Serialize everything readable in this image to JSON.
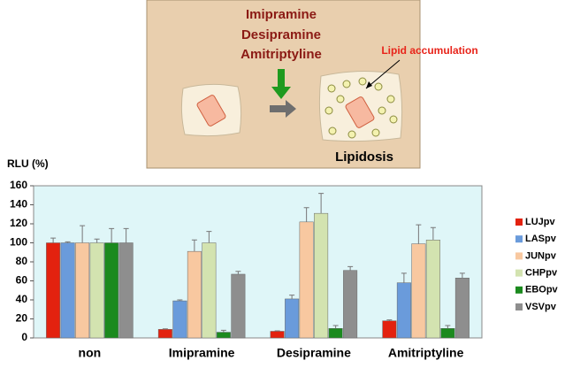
{
  "diagram": {
    "drugs": [
      "Imipramine",
      "Desipramine",
      "Amitriptyline"
    ],
    "annotation": "Lipid accumulation",
    "result": "Lipidosis"
  },
  "chart_data": {
    "type": "bar",
    "ylabel": "RLU (%)",
    "categories": [
      "non",
      "Imipramine",
      "Desipramine",
      "Amitriptyline"
    ],
    "ylim": [
      0,
      160
    ],
    "yticks": [
      0,
      20,
      40,
      60,
      80,
      100,
      120,
      140,
      160
    ],
    "grid": false,
    "legend": "right",
    "series": [
      {
        "name": "LUJpv",
        "color": "#e3220f",
        "values": [
          100,
          9,
          7,
          18
        ],
        "errors": [
          5,
          0.5,
          0.5,
          1
        ]
      },
      {
        "name": "LASpv",
        "color": "#6a9bdb",
        "values": [
          100,
          39,
          41,
          58
        ],
        "errors": [
          1,
          1,
          4,
          10
        ]
      },
      {
        "name": "JUNpv",
        "color": "#f8c8a0",
        "values": [
          100,
          91,
          122,
          99
        ],
        "errors": [
          18,
          12,
          15,
          20
        ]
      },
      {
        "name": "CHPpv",
        "color": "#d3e3b0",
        "values": [
          100,
          100,
          131,
          103
        ],
        "errors": [
          4,
          12,
          21,
          13
        ]
      },
      {
        "name": "EBOpv",
        "color": "#1b8a1e",
        "values": [
          100,
          6,
          10,
          10
        ],
        "errors": [
          15,
          2,
          3,
          3
        ]
      },
      {
        "name": "VSVpv",
        "color": "#8e8e8e",
        "values": [
          100,
          67,
          71,
          63
        ],
        "errors": [
          15,
          3,
          4,
          5
        ]
      }
    ]
  }
}
